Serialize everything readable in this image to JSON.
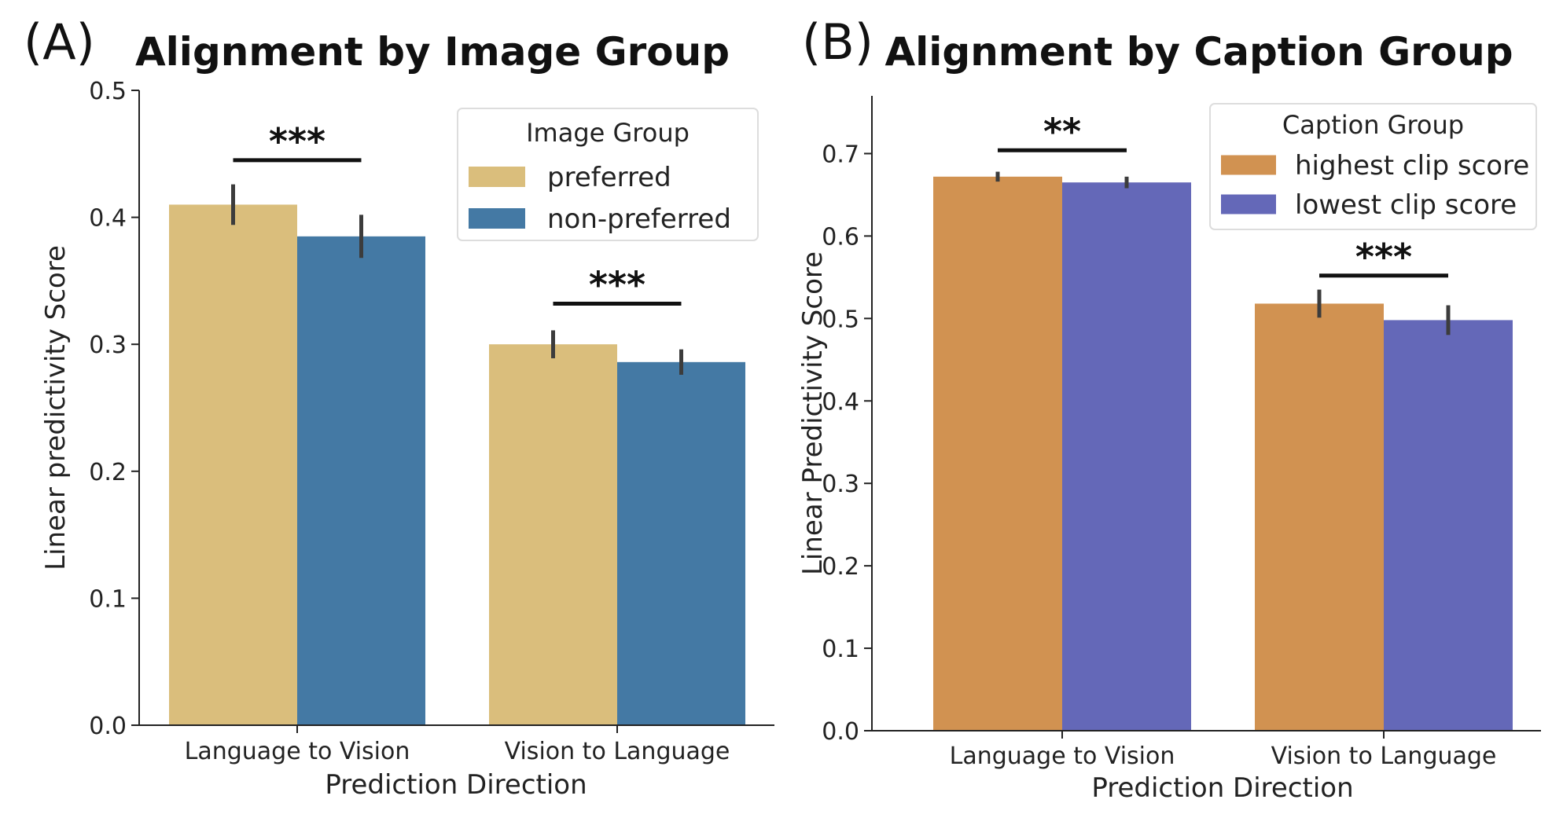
{
  "chart_data": [
    {
      "panel_label": "(A)",
      "type": "bar",
      "title": "Alignment by Image Group",
      "xlabel": "Prediction Direction",
      "ylabel": "Linear predictivity Score",
      "categories": [
        "Language to Vision",
        "Vision to Language"
      ],
      "ylim": [
        0.0,
        0.5
      ],
      "yticks": [
        0.0,
        0.1,
        0.2,
        0.3,
        0.4,
        0.5
      ],
      "ytick_labels": [
        "0.0",
        "0.1",
        "0.2",
        "0.3",
        "0.4",
        "0.5"
      ],
      "series": [
        {
          "name": "preferred",
          "color": "#DABE7C",
          "values": [
            0.41,
            0.3
          ],
          "error": [
            0.016,
            0.011
          ]
        },
        {
          "name": "non-preferred",
          "color": "#4479A4",
          "values": [
            0.385,
            0.286
          ],
          "error": [
            0.017,
            0.01
          ]
        }
      ],
      "legend": {
        "title": "Image Group",
        "position": "top-right"
      },
      "significance": [
        {
          "category": "Language to Vision",
          "label": "***",
          "y": 0.445
        },
        {
          "category": "Vision to Language",
          "label": "***",
          "y": 0.332
        }
      ],
      "grid": false
    },
    {
      "panel_label": "(B)",
      "type": "bar",
      "title": "Alignment by Caption Group",
      "xlabel": "Prediction Direction",
      "ylabel": "Linear Predictivity Score",
      "categories": [
        "Language to Vision",
        "Vision to Language"
      ],
      "ylim": [
        0.0,
        0.77
      ],
      "yticks": [
        0.0,
        0.1,
        0.2,
        0.3,
        0.4,
        0.5,
        0.6,
        0.7
      ],
      "ytick_labels": [
        "0.0",
        "0.1",
        "0.2",
        "0.3",
        "0.4",
        "0.5",
        "0.6",
        "0.7"
      ],
      "series": [
        {
          "name": "highest clip score",
          "color": "#D19251",
          "values": [
            0.672,
            0.518
          ],
          "error": [
            0.006,
            0.017
          ]
        },
        {
          "name": "lowest clip score",
          "color": "#6468B8",
          "values": [
            0.665,
            0.498
          ],
          "error": [
            0.007,
            0.018
          ]
        }
      ],
      "legend": {
        "title": "Caption Group",
        "position": "top-right"
      },
      "significance": [
        {
          "category": "Language to Vision",
          "label": "**",
          "y": 0.704
        },
        {
          "category": "Vision to Language",
          "label": "***",
          "y": 0.552
        }
      ],
      "grid": false
    }
  ]
}
